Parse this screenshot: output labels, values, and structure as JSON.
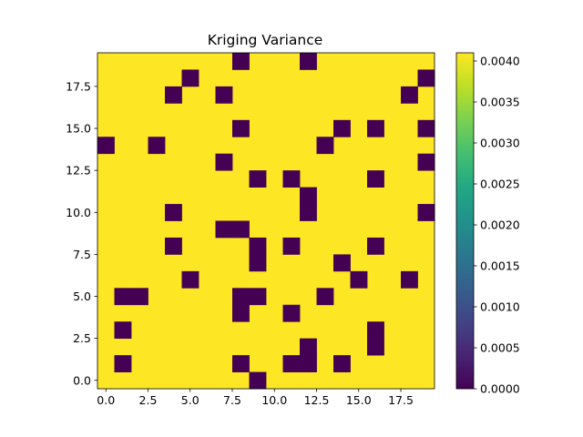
{
  "chart_data": {
    "type": "heatmap",
    "title": "Kriging Variance",
    "xlabel": "",
    "ylabel": "",
    "colormap": "viridis",
    "grid": false,
    "grid_size": [
      20,
      20
    ],
    "xlim": [
      -0.5,
      19.5
    ],
    "ylim": [
      -0.5,
      19.5
    ],
    "clim": [
      0.0,
      0.0041
    ],
    "background_value": 0.0041,
    "zero_value": 0.0,
    "zero_cells": [
      [
        9,
        0
      ],
      [
        1,
        1
      ],
      [
        8,
        1
      ],
      [
        11,
        1
      ],
      [
        12,
        1
      ],
      [
        14,
        1
      ],
      [
        12,
        2
      ],
      [
        16,
        2
      ],
      [
        1,
        3
      ],
      [
        16,
        3
      ],
      [
        8,
        4
      ],
      [
        11,
        4
      ],
      [
        1,
        5
      ],
      [
        2,
        5
      ],
      [
        8,
        5
      ],
      [
        9,
        5
      ],
      [
        13,
        5
      ],
      [
        5,
        6
      ],
      [
        15,
        6
      ],
      [
        18,
        6
      ],
      [
        9,
        7
      ],
      [
        14,
        7
      ],
      [
        4,
        8
      ],
      [
        9,
        8
      ],
      [
        11,
        8
      ],
      [
        16,
        8
      ],
      [
        7,
        9
      ],
      [
        8,
        9
      ],
      [
        4,
        10
      ],
      [
        12,
        10
      ],
      [
        19,
        10
      ],
      [
        12,
        11
      ],
      [
        9,
        12
      ],
      [
        11,
        12
      ],
      [
        16,
        12
      ],
      [
        7,
        13
      ],
      [
        19,
        13
      ],
      [
        0,
        14
      ],
      [
        3,
        14
      ],
      [
        13,
        14
      ],
      [
        8,
        15
      ],
      [
        14,
        15
      ],
      [
        16,
        15
      ],
      [
        19,
        15
      ],
      [
        4,
        17
      ],
      [
        7,
        17
      ],
      [
        18,
        17
      ],
      [
        5,
        18
      ],
      [
        19,
        18
      ],
      [
        8,
        19
      ],
      [
        12,
        19
      ]
    ],
    "x_ticks": [
      0.0,
      2.5,
      5.0,
      7.5,
      10.0,
      12.5,
      15.0,
      17.5
    ],
    "x_tick_labels": [
      "0.0",
      "2.5",
      "5.0",
      "7.5",
      "10.0",
      "12.5",
      "15.0",
      "17.5"
    ],
    "y_ticks": [
      0.0,
      2.5,
      5.0,
      7.5,
      10.0,
      12.5,
      15.0,
      17.5
    ],
    "y_tick_labels": [
      "0.0",
      "2.5",
      "5.0",
      "7.5",
      "10.0",
      "12.5",
      "15.0",
      "17.5"
    ],
    "colorbar_ticks": [
      0.0,
      0.0005,
      0.001,
      0.0015,
      0.002,
      0.0025,
      0.003,
      0.0035,
      0.004
    ],
    "colorbar_tick_labels": [
      "0.0000",
      "0.0005",
      "0.0010",
      "0.0015",
      "0.0020",
      "0.0025",
      "0.0030",
      "0.0035",
      "0.0040"
    ]
  }
}
